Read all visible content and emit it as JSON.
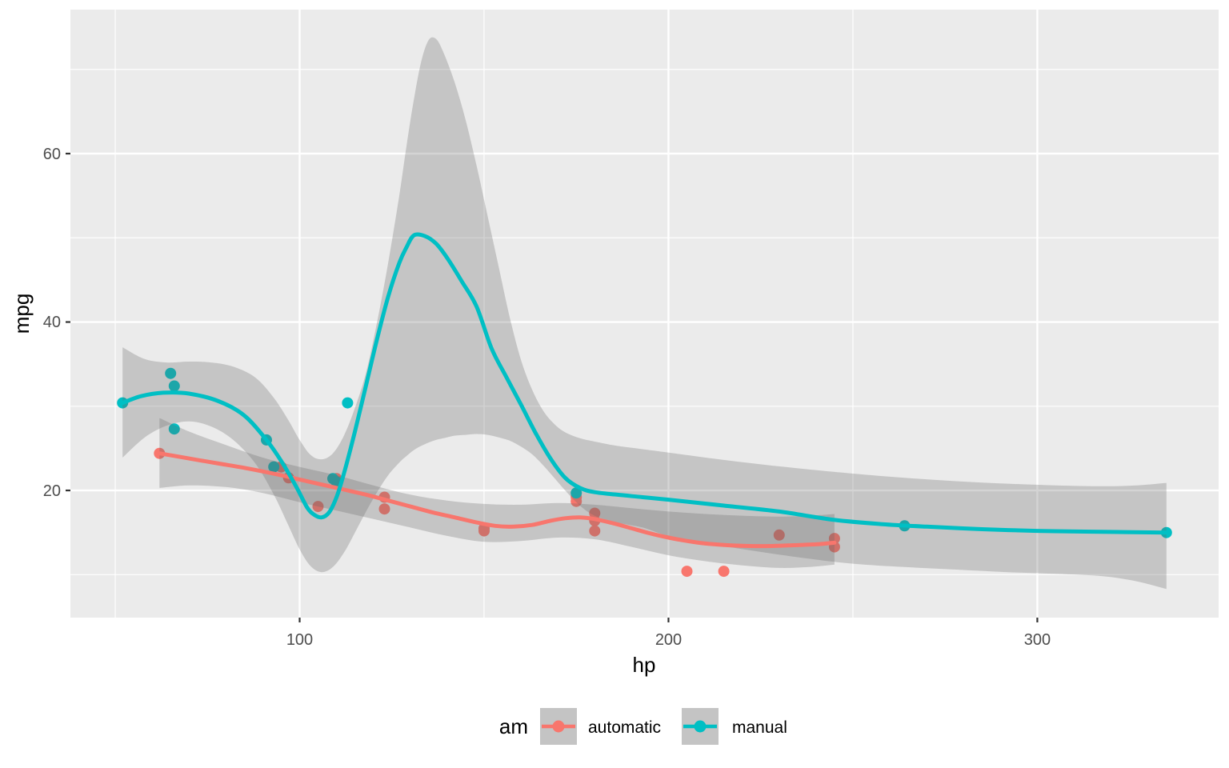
{
  "chart_data": {
    "type": "scatter",
    "title": "",
    "xlabel": "hp",
    "ylabel": "mpg",
    "x_axis": {
      "label": "hp",
      "tick_labels": [
        "100",
        "200",
        "300"
      ],
      "tick_values": [
        100,
        200,
        300
      ],
      "minor_values": [
        50,
        150,
        250
      ],
      "domain": [
        37.85,
        349.15
      ]
    },
    "y_axis": {
      "label": "mpg",
      "tick_labels": [
        "20",
        "40",
        "60"
      ],
      "tick_values": [
        20,
        40,
        60
      ],
      "minor_values": [
        10,
        30,
        50,
        70
      ],
      "domain": [
        4.9,
        77.1
      ]
    },
    "legend": {
      "title": "am",
      "position": "bottom"
    },
    "series": [
      {
        "name": "automatic",
        "color": "#F8766D",
        "points": [
          [
            110,
            21.4
          ],
          [
            175,
            18.7
          ],
          [
            105,
            18.1
          ],
          [
            245,
            14.3
          ],
          [
            62,
            24.4
          ],
          [
            95,
            22.8
          ],
          [
            123,
            19.2
          ],
          [
            123,
            17.8
          ],
          [
            180,
            16.4
          ],
          [
            180,
            17.3
          ],
          [
            180,
            15.2
          ],
          [
            205,
            10.4
          ],
          [
            215,
            10.4
          ],
          [
            230,
            14.7
          ],
          [
            97,
            21.5
          ],
          [
            150,
            15.5
          ],
          [
            150,
            15.2
          ],
          [
            245,
            13.3
          ],
          [
            175,
            19.2
          ]
        ],
        "smooth": [
          [
            62,
            24.4
          ],
          [
            70,
            23.8
          ],
          [
            78,
            23.2
          ],
          [
            86,
            22.6
          ],
          [
            94,
            21.9
          ],
          [
            100,
            21.3
          ],
          [
            106,
            20.7
          ],
          [
            112,
            20.1
          ],
          [
            118,
            19.5
          ],
          [
            124,
            18.8
          ],
          [
            130,
            18.1
          ],
          [
            136,
            17.4
          ],
          [
            142,
            16.8
          ],
          [
            148,
            16.2
          ],
          [
            153,
            15.8
          ],
          [
            158,
            15.7
          ],
          [
            163,
            15.9
          ],
          [
            168,
            16.4
          ],
          [
            172,
            16.7
          ],
          [
            176,
            16.8
          ],
          [
            180,
            16.6
          ],
          [
            185,
            16.1
          ],
          [
            190,
            15.5
          ],
          [
            195,
            14.9
          ],
          [
            200,
            14.4
          ],
          [
            205,
            14.0
          ],
          [
            210,
            13.7
          ],
          [
            216,
            13.5
          ],
          [
            222,
            13.4
          ],
          [
            228,
            13.4
          ],
          [
            234,
            13.5
          ],
          [
            240,
            13.6
          ],
          [
            245,
            13.8
          ]
        ],
        "ribbon": [
          [
            62,
            28.6,
            20.3
          ],
          [
            70,
            27.0,
            20.6
          ],
          [
            80,
            25.4,
            20.4
          ],
          [
            90,
            23.9,
            19.7
          ],
          [
            100,
            22.8,
            18.6
          ],
          [
            110,
            21.8,
            17.6
          ],
          [
            120,
            20.6,
            16.6
          ],
          [
            130,
            19.5,
            15.6
          ],
          [
            140,
            18.8,
            14.6
          ],
          [
            150,
            18.4,
            13.9
          ],
          [
            160,
            18.3,
            14.0
          ],
          [
            170,
            18.5,
            14.4
          ],
          [
            180,
            18.3,
            14.2
          ],
          [
            190,
            17.9,
            13.3
          ],
          [
            200,
            17.5,
            12.3
          ],
          [
            210,
            17.2,
            11.6
          ],
          [
            220,
            17.0,
            11.1
          ],
          [
            230,
            16.9,
            10.8
          ],
          [
            238,
            17.0,
            10.9
          ],
          [
            245,
            17.2,
            11.2
          ]
        ]
      },
      {
        "name": "manual",
        "color": "#00BFC4",
        "points": [
          [
            110,
            21.0
          ],
          [
            110,
            21.0
          ],
          [
            93,
            22.8
          ],
          [
            66,
            32.4
          ],
          [
            52,
            30.4
          ],
          [
            65,
            33.9
          ],
          [
            66,
            27.3
          ],
          [
            91,
            26.0
          ],
          [
            113,
            30.4
          ],
          [
            264,
            15.8
          ],
          [
            175,
            19.7
          ],
          [
            335,
            15.0
          ],
          [
            109,
            21.4
          ]
        ],
        "smooth": [
          [
            52,
            30.4
          ],
          [
            57,
            31.2
          ],
          [
            63,
            31.6
          ],
          [
            70,
            31.5
          ],
          [
            78,
            30.6
          ],
          [
            85,
            28.9
          ],
          [
            91,
            26.0
          ],
          [
            95,
            23.5
          ],
          [
            99,
            20.5
          ],
          [
            102,
            18.0
          ],
          [
            104,
            17.1
          ],
          [
            106,
            16.8
          ],
          [
            108,
            17.4
          ],
          [
            110,
            19.2
          ],
          [
            112,
            22.0
          ],
          [
            115,
            27.0
          ],
          [
            118,
            32.5
          ],
          [
            121,
            38.0
          ],
          [
            124,
            43.0
          ],
          [
            127,
            47.0
          ],
          [
            129,
            48.9
          ],
          [
            131,
            50.3
          ],
          [
            134,
            50.2
          ],
          [
            137,
            49.3
          ],
          [
            140,
            47.6
          ],
          [
            144,
            44.8
          ],
          [
            148,
            41.8
          ],
          [
            152,
            36.9
          ],
          [
            156,
            33.5
          ],
          [
            160,
            30.2
          ],
          [
            164,
            26.8
          ],
          [
            168,
            23.8
          ],
          [
            172,
            21.5
          ],
          [
            176,
            20.3
          ],
          [
            180,
            19.8
          ],
          [
            186,
            19.5
          ],
          [
            193,
            19.2
          ],
          [
            200,
            18.9
          ],
          [
            215,
            18.2
          ],
          [
            230,
            17.5
          ],
          [
            245,
            16.5
          ],
          [
            258,
            16.0
          ],
          [
            270,
            15.7
          ],
          [
            285,
            15.4
          ],
          [
            300,
            15.2
          ],
          [
            315,
            15.1
          ],
          [
            335,
            15.0
          ]
        ],
        "ribbon": [
          [
            52,
            37.0,
            23.9
          ],
          [
            58,
            35.6,
            26.3
          ],
          [
            64,
            35.2,
            27.7
          ],
          [
            70,
            35.3,
            28.2
          ],
          [
            76,
            35.2,
            27.6
          ],
          [
            82,
            34.7,
            26.0
          ],
          [
            88,
            33.4,
            23.2
          ],
          [
            93,
            31.0,
            19.5
          ],
          [
            97,
            28.3,
            15.8
          ],
          [
            100,
            26.0,
            13.0
          ],
          [
            103,
            24.2,
            11.0
          ],
          [
            106,
            23.7,
            10.3
          ],
          [
            109,
            24.4,
            10.9
          ],
          [
            112,
            26.5,
            12.6
          ],
          [
            115,
            29.8,
            15.0
          ],
          [
            118,
            34.0,
            17.5
          ],
          [
            121,
            40.0,
            19.8
          ],
          [
            124,
            47.0,
            21.8
          ],
          [
            127,
            55.0,
            23.3
          ],
          [
            129,
            61.0,
            24.1
          ],
          [
            131,
            66.5,
            24.8
          ],
          [
            133,
            71.0,
            25.3
          ],
          [
            135,
            73.5,
            25.7
          ],
          [
            137,
            73.6,
            26.0
          ],
          [
            139,
            72.0,
            26.2
          ],
          [
            142,
            68.5,
            26.5
          ],
          [
            145,
            64.0,
            26.6
          ],
          [
            148,
            58.5,
            26.7
          ],
          [
            151,
            52.5,
            26.6
          ],
          [
            154,
            46.5,
            26.3
          ],
          [
            157,
            40.5,
            25.9
          ],
          [
            160,
            35.5,
            25.2
          ],
          [
            163,
            32.0,
            24.3
          ],
          [
            166,
            29.5,
            23.0
          ],
          [
            169,
            27.9,
            21.5
          ],
          [
            172,
            26.9,
            20.0
          ],
          [
            176,
            26.2,
            18.2
          ],
          [
            180,
            25.8,
            17.0
          ],
          [
            186,
            25.3,
            16.2
          ],
          [
            193,
            24.9,
            15.6
          ],
          [
            200,
            24.5,
            14.6
          ],
          [
            212,
            23.8,
            13.6
          ],
          [
            225,
            23.1,
            12.7
          ],
          [
            238,
            22.5,
            11.9
          ],
          [
            250,
            22.0,
            11.3
          ],
          [
            264,
            21.5,
            10.9
          ],
          [
            278,
            21.1,
            10.6
          ],
          [
            292,
            20.8,
            10.3
          ],
          [
            305,
            20.6,
            10.1
          ],
          [
            318,
            20.5,
            9.8
          ],
          [
            327,
            20.6,
            9.2
          ],
          [
            335,
            20.9,
            8.3
          ]
        ]
      }
    ],
    "style": {
      "panel_bg": "#EBEBEB",
      "grid_color": "#FFFFFF",
      "ribbon_fill": "#666666",
      "ribbon_opacity": 0.28,
      "tick_mark_color": "#333333",
      "tick_label_color": "#4D4D4D",
      "legend_key_bg": "#C4C4C4"
    }
  }
}
